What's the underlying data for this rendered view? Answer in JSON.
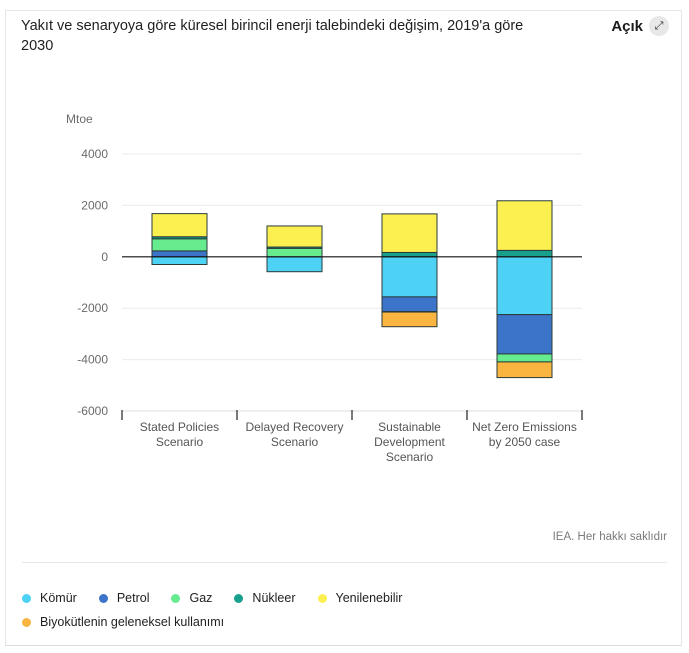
{
  "header": {
    "title": "Yakıt ve senaryoya göre küresel birincil enerji talebindeki değişim, 2019'a göre 2030",
    "open_label": "Açık",
    "open_icon": "expand-arrows-icon"
  },
  "credit": "IEA. Her hakkı saklıdır",
  "chart_data": {
    "type": "bar",
    "stacked": true,
    "title": "Yakıt ve senaryoya göre küresel birincil enerji talebindeki değişim, 2019'a göre 2030",
    "ylabel": "Mtoe",
    "xlabel": "",
    "ylim": [
      -6000,
      4000
    ],
    "yticks": [
      4000,
      2000,
      0,
      -2000,
      -4000,
      -6000
    ],
    "grid": true,
    "legend_position": "bottom",
    "categories": [
      [
        "Stated Policies",
        "Scenario"
      ],
      [
        "Delayed Recovery",
        "Scenario"
      ],
      [
        "Sustainable",
        "Development",
        "Scenario"
      ],
      [
        "Net Zero Emissions",
        "by 2050 case"
      ]
    ],
    "series": [
      {
        "name": "Kömür",
        "color": "#4dd2f5",
        "values": [
          -300,
          -580,
          -1560,
          -2250
        ]
      },
      {
        "name": "Petrol",
        "color": "#3c74c9",
        "values": [
          230,
          0,
          -570,
          -1530
        ]
      },
      {
        "name": "Gaz",
        "color": "#66ec8f",
        "values": [
          470,
          330,
          -20,
          -310
        ]
      },
      {
        "name": "Nükleer",
        "color": "#17a08c",
        "values": [
          80,
          50,
          170,
          250
        ]
      },
      {
        "name": "Yenilenebilir",
        "color": "#fcf051",
        "values": [
          900,
          820,
          1500,
          1930
        ]
      },
      {
        "name": "Biyokütlenin geleneksel kullanımı",
        "color": "#f9b540",
        "values": [
          0,
          0,
          -570,
          -610
        ]
      }
    ]
  },
  "legend": {
    "rows": [
      [
        {
          "name": "Kömür",
          "color": "#4dd2f5"
        },
        {
          "name": "Petrol",
          "color": "#3c74c9"
        },
        {
          "name": "Gaz",
          "color": "#66ec8f"
        },
        {
          "name": "Nükleer",
          "color": "#17a08c"
        },
        {
          "name": "Yenilenebilir",
          "color": "#fcf051"
        }
      ],
      [
        {
          "name": "Biyokütlenin geleneksel kullanımı",
          "color": "#f9b540"
        }
      ]
    ]
  }
}
